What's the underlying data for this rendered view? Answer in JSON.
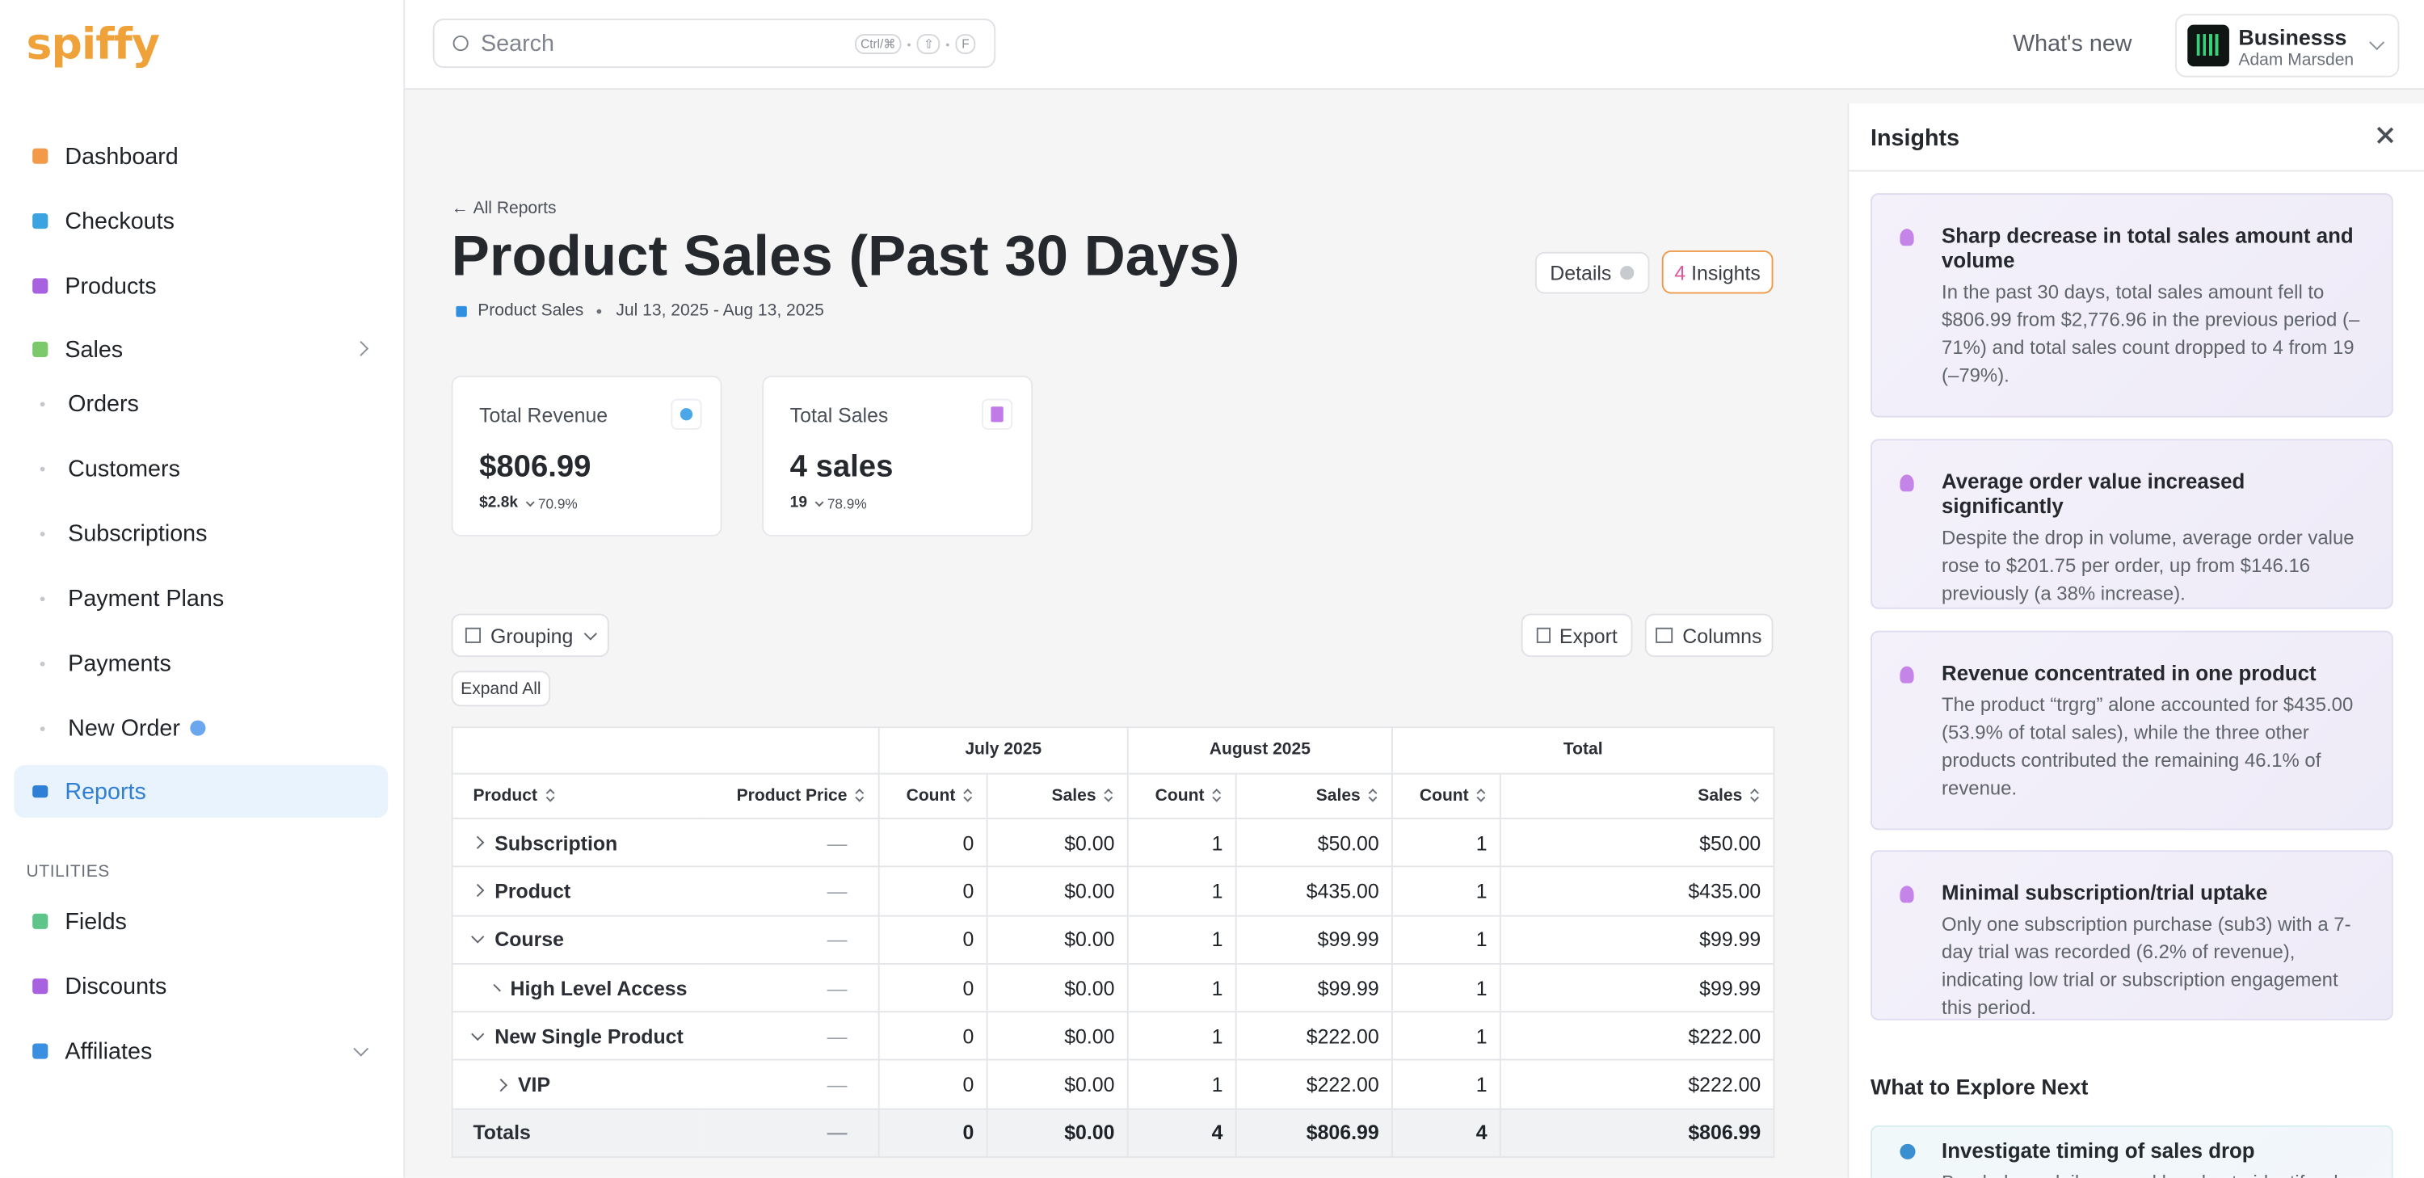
{
  "brand": "spiffy",
  "search": {
    "placeholder": "Search",
    "keys": [
      "Ctrl/⌘",
      "⇧",
      "F"
    ]
  },
  "topbar": {
    "whats_new": "What's new",
    "account_name": "Businesss",
    "account_user": "Adam Marsden"
  },
  "sidebar": {
    "nav": [
      "Dashboard",
      "Checkouts",
      "Products",
      "Sales"
    ],
    "sales_sub": [
      "Orders",
      "Customers",
      "Subscriptions",
      "Payment Plans",
      "Payments",
      "New Order"
    ],
    "active": "Reports",
    "utilities_label": "UTILITIES",
    "utilities": [
      "Fields",
      "Discounts",
      "Affiliates"
    ]
  },
  "report": {
    "back": "All Reports",
    "title": "Product Sales (Past 30 Days)",
    "source": "Product Sales",
    "date_range": "Jul 13, 2025 - Aug 13, 2025",
    "details": "Details",
    "insights_count": 4,
    "insights_label": "Insights"
  },
  "metrics": [
    {
      "label": "Total Revenue",
      "value": "$806.99",
      "previous": "$2.8k",
      "change": "70.9%"
    },
    {
      "label": "Total Sales",
      "value": "4 sales",
      "previous": "19",
      "change": "78.9%"
    }
  ],
  "toolbar": {
    "grouping": "Grouping",
    "export": "Export",
    "columns": "Columns",
    "expand_all": "Expand All"
  },
  "table": {
    "groups": [
      "July 2025",
      "August 2025",
      "Total"
    ],
    "columns": [
      "Product",
      "Product Price",
      "Count",
      "Sales",
      "Count",
      "Sales",
      "Count",
      "Sales"
    ],
    "rows": [
      [
        "Subscription",
        "—",
        0,
        "$0.00",
        1,
        "$50.00",
        1,
        "$50.00"
      ],
      [
        "Product",
        "—",
        0,
        "$0.00",
        1,
        "$435.00",
        1,
        "$435.00"
      ],
      [
        "Course",
        "—",
        0,
        "$0.00",
        1,
        "$99.99",
        1,
        "$99.99"
      ],
      [
        "High Level Access",
        "—",
        0,
        "$0.00",
        1,
        "$99.99",
        1,
        "$99.99"
      ],
      [
        "New Single Product",
        "—",
        0,
        "$0.00",
        1,
        "$222.00",
        1,
        "$222.00"
      ],
      [
        "VIP",
        "—",
        0,
        "$0.00",
        1,
        "$222.00",
        1,
        "$222.00"
      ]
    ],
    "row_levels": [
      0,
      0,
      0,
      1,
      0,
      1
    ],
    "row_expanded": [
      false,
      false,
      true,
      false,
      true,
      false
    ],
    "totals": [
      "Totals",
      "—",
      0,
      "$0.00",
      4,
      "$806.99",
      4,
      "$806.99"
    ]
  },
  "insights": {
    "title": "Insights",
    "items": [
      {
        "title": "Sharp decrease in total sales amount and volume",
        "text": "In the past 30 days, total sales amount fell to $806.99 from $2,776.96 in the previous period (–71%) and total sales count dropped to 4 from 19 (–79%)."
      },
      {
        "title": "Average order value increased significantly",
        "text": "Despite the drop in volume, average order value rose to $201.75 per order, up from $146.16 previously (a 38% increase)."
      },
      {
        "title": "Revenue concentrated in one product",
        "text": "The product “trgrg” alone accounted for $435.00 (53.9% of total sales), while the three other products contributed the remaining 46.1% of revenue."
      },
      {
        "title": "Minimal subscription/trial uptake",
        "text": "Only one subscription purchase (sub3) with a 7-day trial was recorded (6.2% of revenue), indicating low trial or subscription engagement this period."
      }
    ],
    "explore_title": "What to Explore Next",
    "explore": [
      {
        "title": "Investigate timing of sales drop",
        "text": "Break down daily or weekly sales to identify when"
      }
    ]
  }
}
